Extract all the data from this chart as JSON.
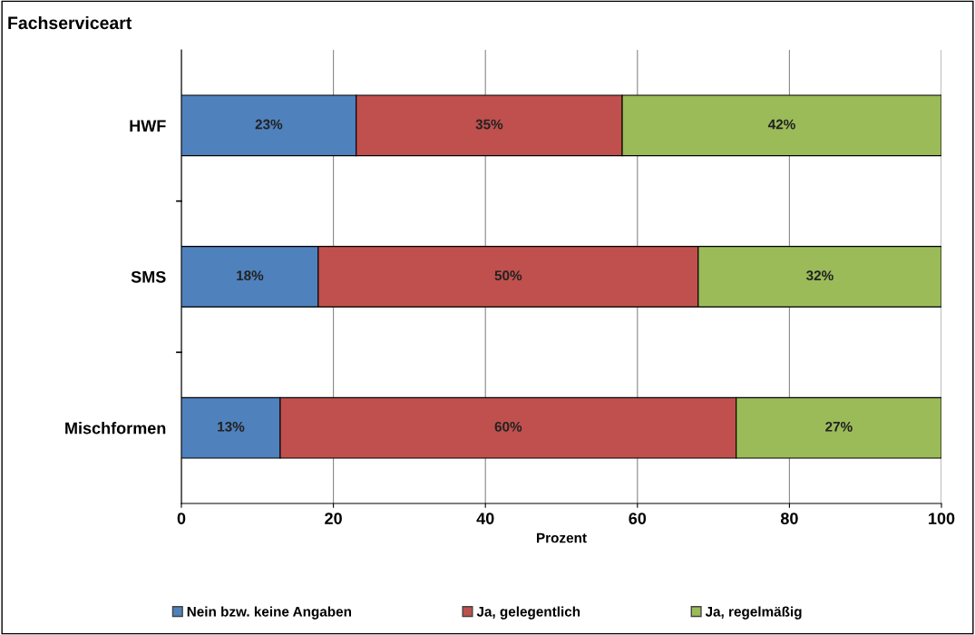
{
  "chart_data": {
    "type": "bar",
    "orientation": "horizontal",
    "stacked": true,
    "ylabel": "Fachserviceart",
    "xlabel": "Prozent",
    "categories": [
      "HWF",
      "SMS",
      "Mischformen"
    ],
    "series": [
      {
        "name": "Nein bzw. keine Angaben",
        "color": "#4f81bd",
        "values": [
          23,
          18,
          13
        ]
      },
      {
        "name": "Ja, gelegentlich",
        "color": "#c0504d",
        "values": [
          35,
          50,
          60
        ]
      },
      {
        "name": "Ja, regelmäßig",
        "color": "#9bbb59",
        "values": [
          42,
          32,
          27
        ]
      }
    ],
    "value_labels": [
      [
        "23%",
        "18%",
        "13%"
      ],
      [
        "35%",
        "50%",
        "60%"
      ],
      [
        "42%",
        "32%",
        "27%"
      ]
    ],
    "xlim": [
      0,
      100
    ],
    "xticks": [
      0,
      20,
      40,
      60,
      80,
      100
    ],
    "grid": "x",
    "legend": "bottom"
  }
}
